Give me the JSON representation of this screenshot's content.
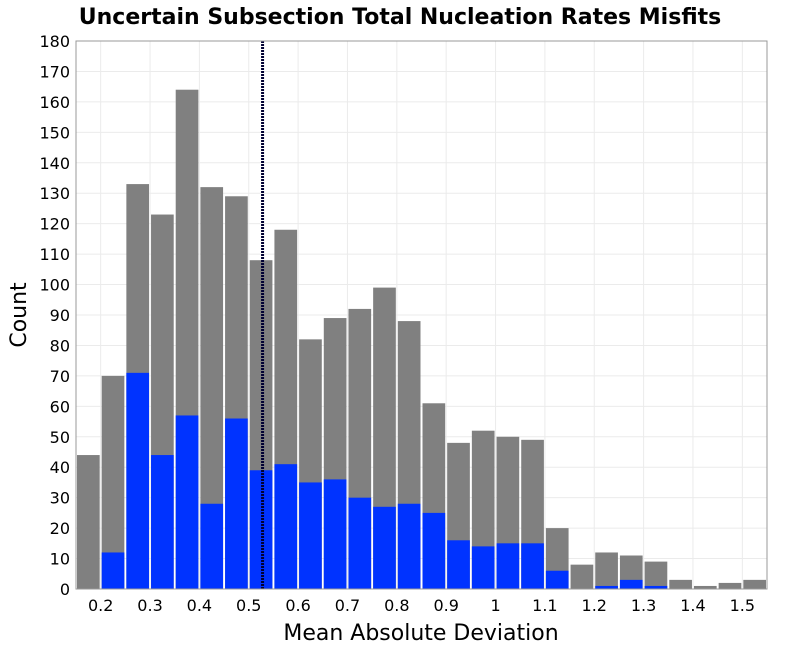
{
  "chart_data": {
    "type": "bar",
    "title": "Uncertain Subsection Total Nucleation Rates Misfits",
    "xlabel": "Mean Absolute Deviation",
    "ylabel": "Count",
    "xlim": [
      0.15,
      1.55
    ],
    "ylim": [
      0,
      180
    ],
    "bin_width": 0.05,
    "grid": true,
    "x_ticks": [
      "0.2",
      "0.3",
      "0.4",
      "0.5",
      "0.6",
      "0.7",
      "0.8",
      "0.9",
      "1",
      "1.1",
      "1.2",
      "1.3",
      "1.4",
      "1.5"
    ],
    "y_ticks": [
      "0",
      "10",
      "20",
      "30",
      "40",
      "50",
      "60",
      "70",
      "80",
      "90",
      "100",
      "110",
      "120",
      "130",
      "140",
      "150",
      "160",
      "170",
      "180"
    ],
    "x": [
      0.175,
      0.225,
      0.275,
      0.325,
      0.375,
      0.425,
      0.475,
      0.525,
      0.575,
      0.625,
      0.675,
      0.725,
      0.775,
      0.825,
      0.875,
      0.925,
      0.975,
      1.025,
      1.075,
      1.125,
      1.175,
      1.225,
      1.275,
      1.325,
      1.375,
      1.425,
      1.475,
      1.525
    ],
    "series": [
      {
        "color": "#808080",
        "values": [
          44,
          70,
          133,
          123,
          164,
          132,
          129,
          108,
          118,
          82,
          89,
          92,
          99,
          88,
          61,
          48,
          52,
          50,
          49,
          20,
          8,
          12,
          11,
          9,
          3,
          1,
          2,
          3
        ]
      },
      {
        "color": "#0033ff",
        "values": [
          0,
          12,
          71,
          44,
          57,
          28,
          56,
          39,
          41,
          35,
          36,
          30,
          27,
          28,
          25,
          16,
          14,
          15,
          15,
          6,
          0,
          1,
          3,
          1,
          0,
          0,
          0,
          0
        ]
      }
    ],
    "vline": {
      "x": 0.528,
      "color": "#000033",
      "style": "dotted"
    }
  }
}
